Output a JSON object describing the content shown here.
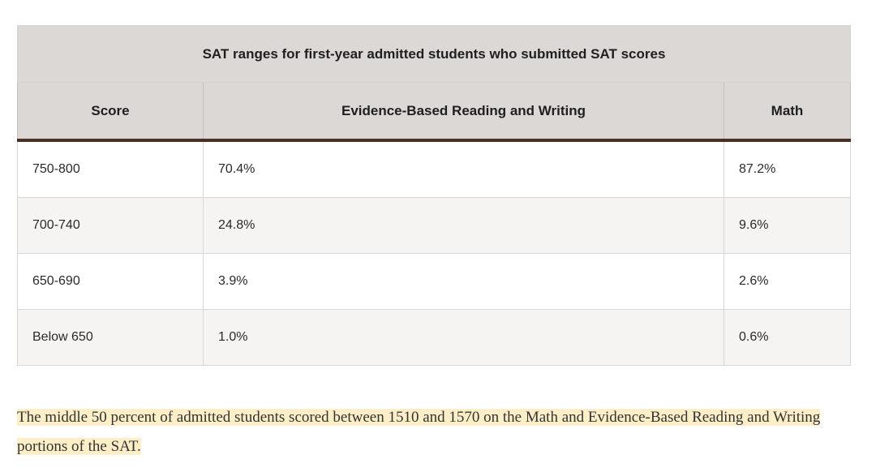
{
  "table": {
    "caption": "SAT ranges for first-year admitted students who submitted SAT scores",
    "headers": {
      "score": "Score",
      "ebrw": "Evidence-Based Reading and Writing",
      "math": "Math"
    },
    "rows": [
      {
        "score": "750-800",
        "ebrw": "70.4%",
        "math": "87.2%"
      },
      {
        "score": "700-740",
        "ebrw": "24.8%",
        "math": "9.6%"
      },
      {
        "score": "650-690",
        "ebrw": "3.9%",
        "math": "2.6%"
      },
      {
        "score": "Below 650",
        "ebrw": "1.0%",
        "math": "0.6%"
      }
    ]
  },
  "note": {
    "text": "The middle 50 percent of admitted students scored between 1510 and 1570 on the Math and Evidence-Based Reading and Writing portions of the SAT."
  },
  "colors": {
    "header_bg": "#dcd8d5",
    "header_rule": "#4b2f23",
    "row_alt_bg": "#f5f4f3",
    "highlight": "#fcefc7"
  }
}
